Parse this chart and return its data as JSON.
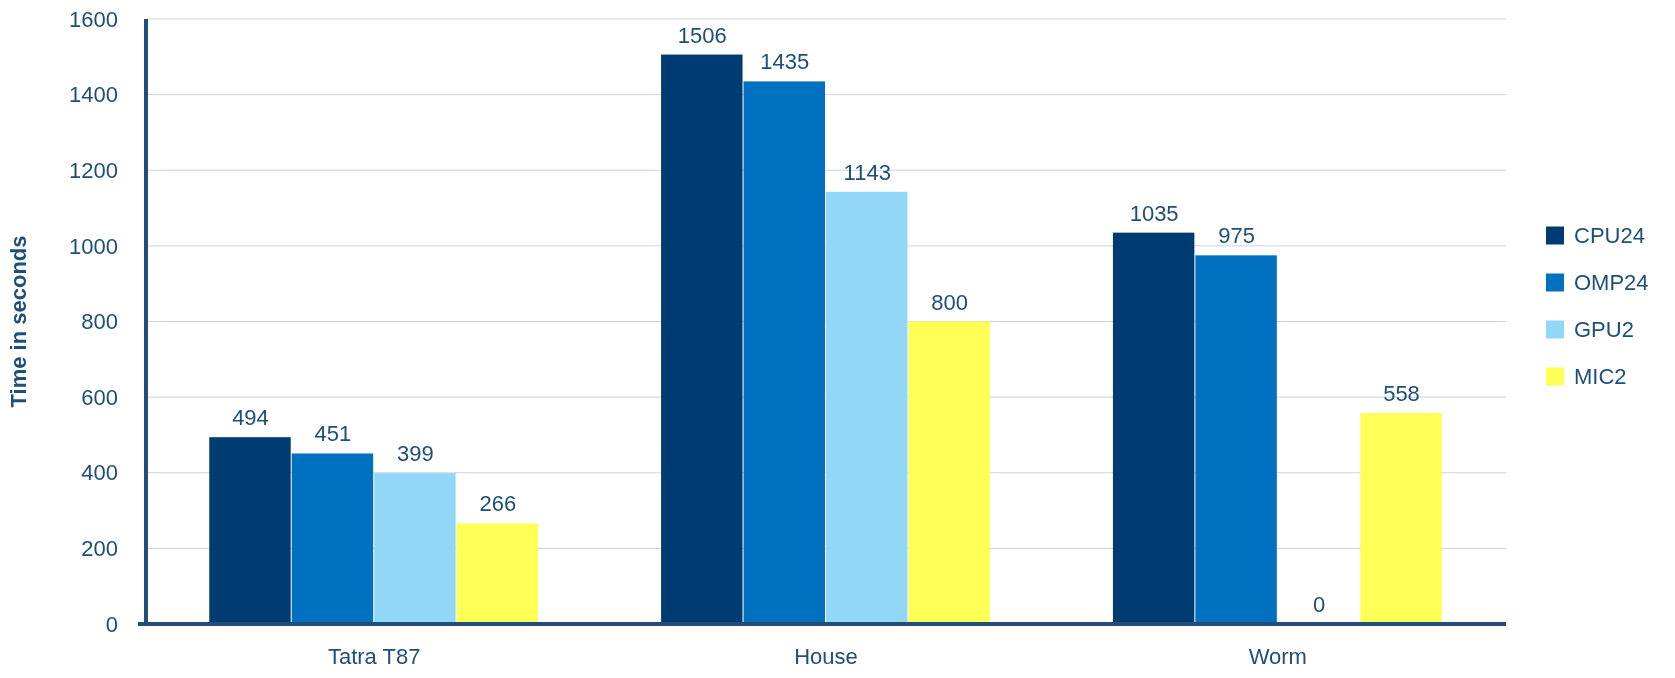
{
  "chart_data": {
    "type": "bar",
    "ylabel": "Time in seconds",
    "categories": [
      "Tatra T87",
      "House",
      "Worm"
    ],
    "series": [
      {
        "name": "CPU24",
        "color": "#003c71",
        "values": [
          494,
          1506,
          1035
        ]
      },
      {
        "name": "OMP24",
        "color": "#0070c0",
        "values": [
          451,
          1435,
          975
        ]
      },
      {
        "name": "GPU2",
        "color": "#92d8f6",
        "values": [
          399,
          1143,
          0
        ]
      },
      {
        "name": "MIC2",
        "color": "#ffff55",
        "values": [
          266,
          800,
          558
        ]
      }
    ],
    "ylim": [
      0,
      1600
    ],
    "yticks": [
      0,
      200,
      400,
      600,
      800,
      1000,
      1200,
      1400,
      1600
    ],
    "grid": "y",
    "legend": "right",
    "data_labels": true
  }
}
